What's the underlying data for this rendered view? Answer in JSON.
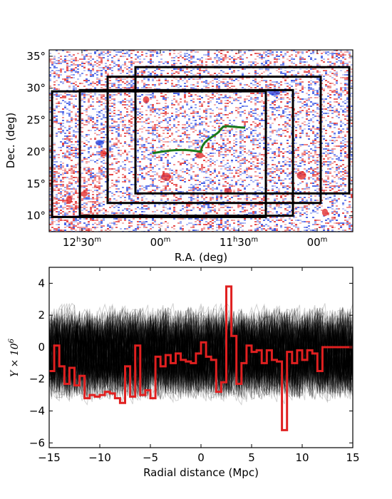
{
  "chart_data": [
    {
      "type": "heatmap",
      "xlabel": "R.A. (deg)",
      "ylabel": "Dec. (deg)",
      "ylim": [
        7.5,
        36
      ],
      "yticks": [
        10,
        15,
        20,
        25,
        30,
        35
      ],
      "ytick_labels": [
        "10°",
        "15°",
        "20°",
        "25°",
        "30°",
        "35°"
      ],
      "xticks": [
        {
          "h": "12",
          "hsup": "h",
          "m": "30",
          "msup": "m"
        },
        {
          "h": "",
          "hsup": "",
          "m": "00",
          "msup": "m"
        },
        {
          "h": "11",
          "hsup": "h",
          "m": "30",
          "msup": "m"
        },
        {
          "h": "",
          "hsup": "",
          "m": "00",
          "msup": "m"
        }
      ],
      "colors": {
        "positive": "#e02020",
        "negative": "#2040e0",
        "background": "#ffffff"
      },
      "rectangles_dec": [
        {
          "dec_lo": 9.8,
          "dec_hi": 29.5
        },
        {
          "dec_lo": 10.0,
          "dec_hi": 29.7
        },
        {
          "dec_lo": 12.0,
          "dec_hi": 31.8
        },
        {
          "dec_lo": 13.5,
          "dec_hi": 33.3
        }
      ],
      "filament_color": "#1a7a1a"
    },
    {
      "type": "line",
      "xlabel": "Radial distance (Mpc)",
      "ylabel": "Y × 10",
      "ylabel_sup": "6",
      "xlim": [
        -15,
        15
      ],
      "ylim": [
        -6.3,
        5.0
      ],
      "xticks": [
        -15,
        -10,
        -5,
        0,
        5,
        10,
        15
      ],
      "yticks": [
        -6,
        -4,
        -2,
        0,
        2,
        4
      ],
      "highlight_color": "#e02020",
      "background_color": "#000000",
      "highlight_series": {
        "x": [
          -15,
          -14.5,
          -14,
          -13.5,
          -13,
          -12.5,
          -12,
          -11.5,
          -11,
          -10.5,
          -10,
          -9.5,
          -9,
          -8.5,
          -8,
          -7.5,
          -7,
          -6.5,
          -6,
          -5.5,
          -5,
          -4.5,
          -4,
          -3.5,
          -3,
          -2.5,
          -2,
          -1.5,
          -1,
          -0.5,
          0,
          0.5,
          1,
          1.5,
          2,
          2.5,
          3,
          3.5,
          4,
          4.5,
          5,
          5.5,
          6,
          6.5,
          7,
          7.5,
          8,
          8.5,
          9,
          9.5,
          10,
          10.5,
          11,
          11.5,
          12,
          12.5,
          13,
          13.5,
          14,
          14.5,
          15
        ],
        "y": [
          -1.5,
          0.1,
          -1.2,
          -2.3,
          -1.3,
          -2.4,
          -1.8,
          -3.2,
          -3.0,
          -3.1,
          -3.0,
          -2.8,
          -2.9,
          -3.2,
          -3.5,
          -1.2,
          -3.1,
          0.1,
          -3.0,
          -2.7,
          -3.2,
          -0.6,
          -1.2,
          -0.5,
          -1.0,
          -0.4,
          -0.8,
          -0.9,
          -1.0,
          -0.4,
          0.3,
          -0.6,
          -0.8,
          -2.8,
          -2.2,
          3.8,
          0.7,
          -2.3,
          -1.0,
          0.1,
          -0.3,
          -0.2,
          -1.0,
          -0.2,
          -0.8,
          -0.9,
          -5.2,
          -0.3,
          -1.0,
          -0.2,
          -0.8,
          -0.2,
          -0.4,
          -1.5,
          0.0,
          0.0,
          0.0,
          0.0,
          0.0,
          0.0,
          0.0
        ]
      },
      "background_series_count": 200
    }
  ]
}
